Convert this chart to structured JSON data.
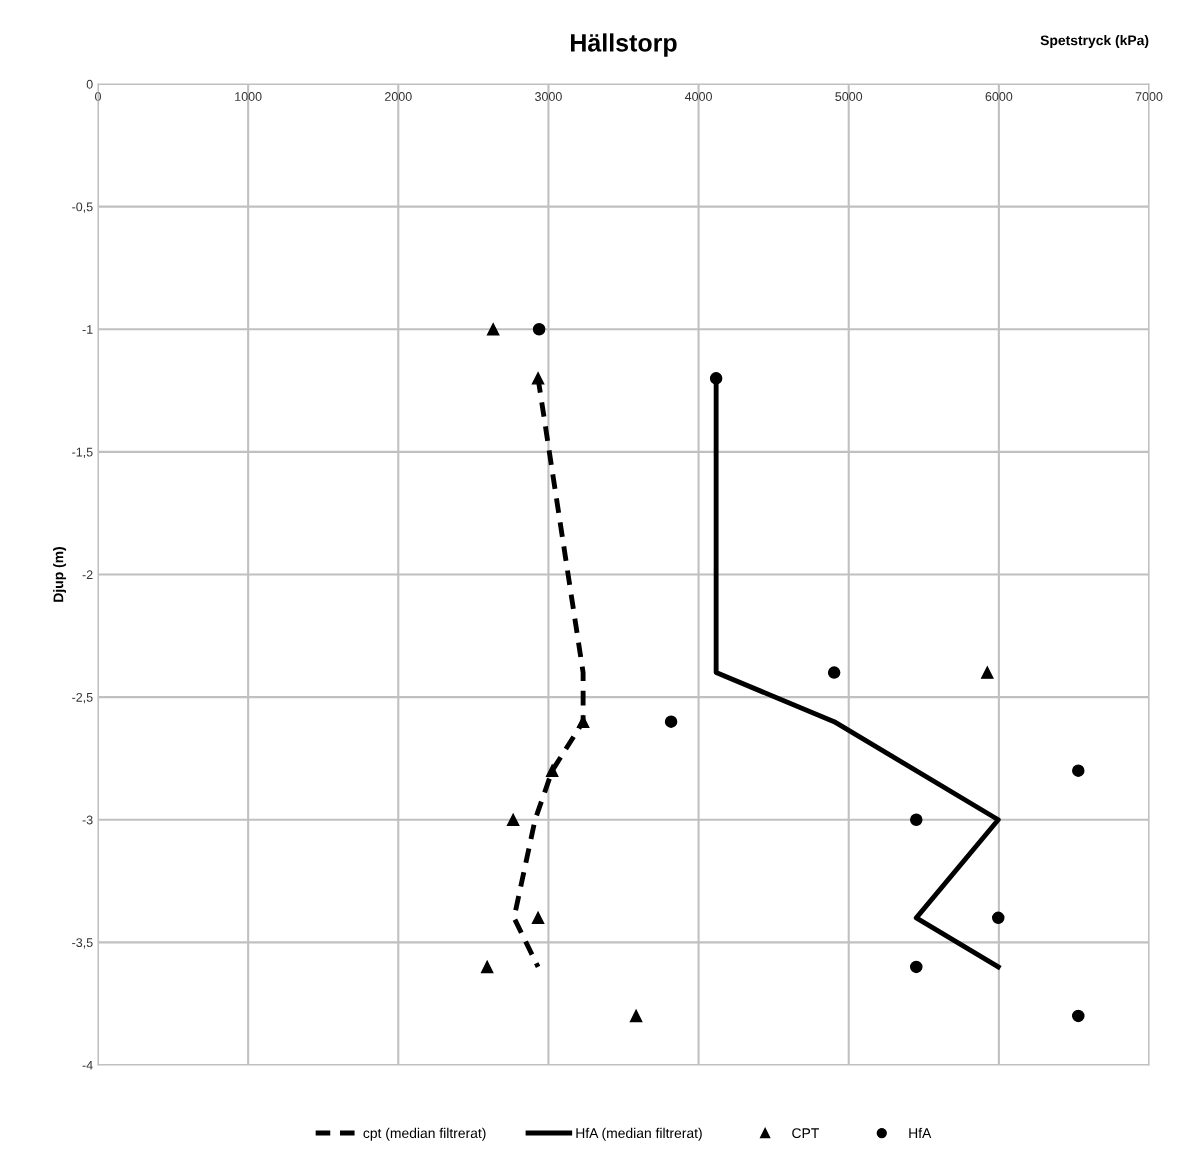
{
  "chart_data": {
    "type": "line",
    "title": "Hällstorp",
    "xlabel": "Spetstryck (kPa)",
    "ylabel": "Djup (m)",
    "xlim": [
      0,
      7000
    ],
    "xticks": [
      0,
      1000,
      2000,
      3000,
      4000,
      5000,
      6000,
      7000
    ],
    "ylim": [
      -4,
      0
    ],
    "yticks": [
      0,
      {
        "value": -0.5,
        "label": "-0,5"
      },
      -1,
      {
        "value": -1.5,
        "label": "-1,5"
      },
      -2,
      {
        "value": -2.5,
        "label": "-2,5"
      },
      -3,
      {
        "value": -3.5,
        "label": "-3,5"
      },
      -4
    ],
    "grid": true,
    "legend": "bottom",
    "series": [
      {
        "name": "cpt (median filtrerat)",
        "color": "#000000",
        "line_style": "dashed",
        "marker": "none",
        "x": [
          2931,
          3231,
          3231,
          3025,
          2911,
          2771,
          2931
        ],
        "values": [
          -1.2,
          -2.4,
          -2.6,
          -2.8,
          -3.0,
          -3.4,
          -3.6
        ]
      },
      {
        "name": "HfA (median filtrerat)",
        "color": "#000000",
        "line_style": "solid",
        "marker": "none",
        "x": [
          4117,
          4117,
          4903,
          5996,
          5450,
          5996
        ],
        "values": [
          -1.2,
          -2.4,
          -2.6,
          -3.0,
          -3.4,
          -3.6
        ]
      },
      {
        "name": "CPT",
        "type": "scatter",
        "color": "#000000",
        "marker": "triangle",
        "x": [
          2632,
          2931,
          5923,
          3231,
          3025,
          2765,
          2931,
          2592,
          3584
        ],
        "values": [
          -1.0,
          -1.2,
          -2.4,
          -2.6,
          -2.8,
          -3.0,
          -3.4,
          -3.6,
          -3.8
        ]
      },
      {
        "name": "HfA",
        "type": "scatter",
        "color": "#000000",
        "marker": "circle",
        "x": [
          2938,
          4117,
          4903,
          3817,
          6529,
          5450,
          5996,
          5450,
          6529
        ],
        "values": [
          -1.0,
          -1.2,
          -2.4,
          -2.6,
          -2.8,
          -3.0,
          -3.4,
          -3.6,
          -3.8
        ]
      }
    ]
  }
}
